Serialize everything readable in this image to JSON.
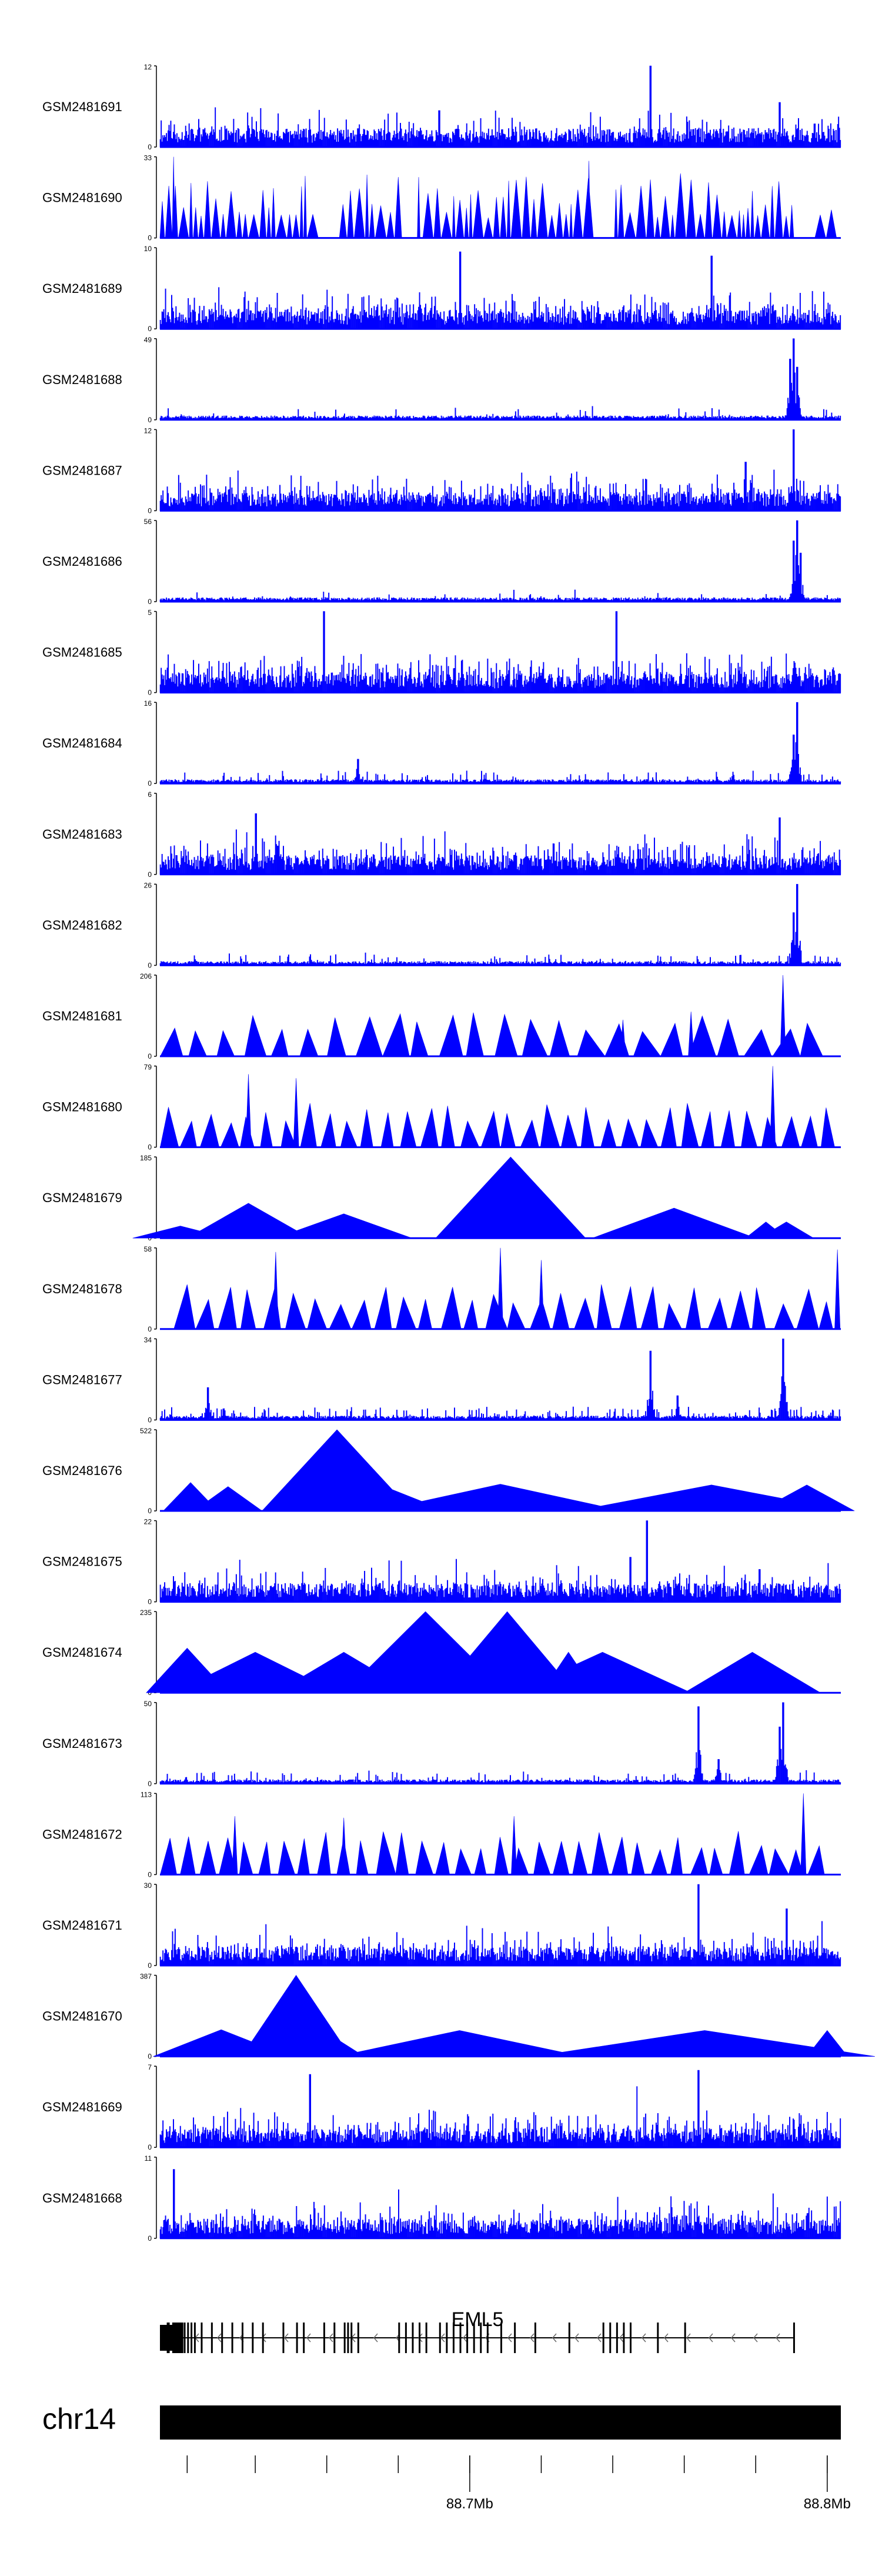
{
  "chart_data": {
    "type": "area",
    "title": "",
    "color": "#0000ff",
    "gene_color": "#000000",
    "tracks": [
      {
        "name": "GSM2481691",
        "ymax": "12",
        "ymin": "0",
        "style": "dense",
        "seed": 11,
        "density": 0.22,
        "peaks": [
          [
            0.72,
            1.0
          ],
          [
            0.91,
            0.55
          ],
          [
            0.41,
            0.45
          ]
        ]
      },
      {
        "name": "GSM2481690",
        "ymax": "33",
        "ymin": "0",
        "style": "spiky",
        "seed": 23,
        "count": 105,
        "peaks": [
          [
            0.02,
            1.0
          ],
          [
            0.38,
            0.75
          ],
          [
            0.63,
            0.95
          ]
        ]
      },
      {
        "name": "GSM2481689",
        "ymax": "10",
        "ymin": "0",
        "style": "dense",
        "seed": 31,
        "density": 0.45,
        "peaks": [
          [
            0.44,
            0.95
          ],
          [
            0.81,
            0.9
          ]
        ]
      },
      {
        "name": "GSM2481688",
        "ymax": "49",
        "ymin": "0",
        "style": "sparse",
        "seed": 41,
        "density": 0.05,
        "peaks": [
          [
            0.93,
            1.0
          ],
          [
            0.925,
            0.75
          ],
          [
            0.935,
            0.65
          ]
        ]
      },
      {
        "name": "GSM2481687",
        "ymax": "12",
        "ymin": "0",
        "style": "dense",
        "seed": 53,
        "density": 0.42,
        "peaks": [
          [
            0.93,
            1.0
          ],
          [
            0.86,
            0.6
          ]
        ]
      },
      {
        "name": "GSM2481686",
        "ymax": "56",
        "ymin": "0",
        "style": "sparse",
        "seed": 61,
        "density": 0.05,
        "peaks": [
          [
            0.935,
            1.0
          ],
          [
            0.93,
            0.75
          ],
          [
            0.94,
            0.6
          ]
        ]
      },
      {
        "name": "GSM2481685",
        "ymax": "5",
        "ymin": "0",
        "style": "dense",
        "seed": 71,
        "density": 0.5,
        "peaks": [
          [
            0.24,
            1.0
          ],
          [
            0.67,
            1.0
          ]
        ]
      },
      {
        "name": "GSM2481684",
        "ymax": "16",
        "ymin": "0",
        "style": "sparse",
        "seed": 83,
        "density": 0.1,
        "peaks": [
          [
            0.935,
            1.0
          ],
          [
            0.93,
            0.6
          ],
          [
            0.29,
            0.3
          ]
        ]
      },
      {
        "name": "GSM2481683",
        "ymax": "6",
        "ymin": "0",
        "style": "dense",
        "seed": 97,
        "density": 0.38,
        "peaks": [
          [
            0.14,
            0.75
          ],
          [
            0.91,
            0.7
          ]
        ]
      },
      {
        "name": "GSM2481682",
        "ymax": "26",
        "ymin": "0",
        "style": "sparse",
        "seed": 101,
        "density": 0.06,
        "peaks": [
          [
            0.935,
            1.0
          ],
          [
            0.93,
            0.65
          ],
          [
            0.05,
            0.12
          ]
        ]
      },
      {
        "name": "GSM2481681",
        "ymax": "206",
        "ymin": "0",
        "style": "triangles",
        "seed": 113,
        "count": 24,
        "start": 0.0,
        "end": 0.98,
        "peaks": [
          [
            0.915,
            1.0
          ],
          [
            0.78,
            0.55
          ],
          [
            0.68,
            0.45
          ]
        ]
      },
      {
        "name": "GSM2481680",
        "ymax": "79",
        "ymin": "0",
        "style": "triangles",
        "seed": 127,
        "count": 34,
        "start": 0.0,
        "end": 1.0,
        "peaks": [
          [
            0.9,
            1.0
          ],
          [
            0.13,
            0.9
          ],
          [
            0.2,
            0.85
          ]
        ]
      },
      {
        "name": "GSM2481679",
        "ymax": "185",
        "ymin": "0",
        "style": "triangles_custom",
        "peaks": [
          [
            0.03,
            0.15,
            0.07
          ],
          [
            0.1,
            0.2,
            0.05
          ],
          [
            0.13,
            0.43,
            0.09
          ],
          [
            0.24,
            0.15,
            0.05
          ],
          [
            0.27,
            0.3,
            0.1
          ],
          [
            0.515,
            1.0,
            0.11
          ],
          [
            0.755,
            0.37,
            0.12
          ],
          [
            0.89,
            0.2,
            0.03
          ],
          [
            0.92,
            0.2,
            0.04
          ]
        ]
      },
      {
        "name": "GSM2481678",
        "ymax": "58",
        "ymin": "0",
        "style": "triangles",
        "seed": 139,
        "count": 30,
        "start": 0.02,
        "end": 1.0,
        "peaks": [
          [
            0.5,
            1.0
          ],
          [
            0.17,
            0.95
          ],
          [
            0.995,
            0.98
          ],
          [
            0.56,
            0.85
          ]
        ]
      },
      {
        "name": "GSM2481677",
        "ymax": "34",
        "ymin": "0",
        "style": "sparse",
        "seed": 149,
        "density": 0.18,
        "peaks": [
          [
            0.915,
            1.0
          ],
          [
            0.72,
            0.85
          ],
          [
            0.07,
            0.4
          ],
          [
            0.76,
            0.3
          ]
        ]
      },
      {
        "name": "GSM2481676",
        "ymax": "522",
        "ymin": "0",
        "style": "triangles_custom",
        "peaks": [
          [
            0.045,
            0.35,
            0.04
          ],
          [
            0.1,
            0.3,
            0.05
          ],
          [
            0.26,
            1.0,
            0.11
          ],
          [
            0.28,
            0.35,
            0.03
          ],
          [
            0.33,
            0.3,
            0.09
          ],
          [
            0.5,
            0.33,
            0.18
          ],
          [
            0.81,
            0.32,
            0.2
          ],
          [
            0.95,
            0.32,
            0.07
          ]
        ]
      },
      {
        "name": "GSM2481675",
        "ymax": "22",
        "ymin": "0",
        "style": "dense",
        "seed": 163,
        "density": 0.25,
        "peaks": [
          [
            0.715,
            1.0
          ],
          [
            0.69,
            0.55
          ],
          [
            0.88,
            0.4
          ]
        ]
      },
      {
        "name": "GSM2481674",
        "ymax": "235",
        "ymin": "0",
        "style": "triangles_custom",
        "peaks": [
          [
            0.04,
            0.55,
            0.06
          ],
          [
            0.14,
            0.5,
            0.12
          ],
          [
            0.27,
            0.5,
            0.1
          ],
          [
            0.39,
            1.0,
            0.12
          ],
          [
            0.51,
            1.0,
            0.1
          ],
          [
            0.54,
            0.5,
            0.05
          ],
          [
            0.6,
            0.5,
            0.04
          ],
          [
            0.65,
            0.5,
            0.13
          ],
          [
            0.87,
            0.5,
            0.1
          ]
        ]
      },
      {
        "name": "GSM2481673",
        "ymax": "50",
        "ymin": "0",
        "style": "sparse",
        "seed": 179,
        "density": 0.12,
        "peaks": [
          [
            0.915,
            1.0
          ],
          [
            0.79,
            0.95
          ],
          [
            0.91,
            0.7
          ],
          [
            0.82,
            0.3
          ]
        ]
      },
      {
        "name": "GSM2481672",
        "ymax": "113",
        "ymin": "0",
        "style": "triangles",
        "seed": 191,
        "count": 34,
        "start": 0.0,
        "end": 0.98,
        "peaks": [
          [
            0.945,
            1.0
          ],
          [
            0.11,
            0.72
          ],
          [
            0.27,
            0.7
          ],
          [
            0.52,
            0.72
          ]
        ]
      },
      {
        "name": "GSM2481671",
        "ymax": "30",
        "ymin": "0",
        "style": "dense",
        "seed": 199,
        "density": 0.28,
        "peaks": [
          [
            0.79,
            1.0
          ],
          [
            0.92,
            0.7
          ],
          [
            0.45,
            0.45
          ]
        ]
      },
      {
        "name": "GSM2481670",
        "ymax": "387",
        "ymin": "0",
        "style": "triangles_custom",
        "peaks": [
          [
            0.09,
            0.33,
            0.1
          ],
          [
            0.2,
            1.0,
            0.08
          ],
          [
            0.215,
            0.35,
            0.03
          ],
          [
            0.24,
            0.32,
            0.06
          ],
          [
            0.44,
            0.32,
            0.18
          ],
          [
            0.8,
            0.32,
            0.25
          ],
          [
            0.98,
            0.32,
            0.03
          ]
        ]
      },
      {
        "name": "GSM2481669",
        "ymax": "7",
        "ymin": "0",
        "style": "dense",
        "seed": 211,
        "density": 0.42,
        "peaks": [
          [
            0.79,
            0.95
          ],
          [
            0.22,
            0.9
          ],
          [
            0.7,
            0.75
          ]
        ]
      },
      {
        "name": "GSM2481668",
        "ymax": "11",
        "ymin": "0",
        "style": "dense",
        "seed": 223,
        "density": 0.35,
        "peaks": [
          [
            0.02,
            0.85
          ],
          [
            0.35,
            0.6
          ],
          [
            0.9,
            0.55
          ]
        ]
      }
    ],
    "gene": {
      "name": "EML5",
      "strand": "-",
      "exons": [
        0.0,
        0.01,
        0.018,
        0.022,
        0.026,
        0.03,
        0.035,
        0.04,
        0.045,
        0.05,
        0.06,
        0.075,
        0.09,
        0.105,
        0.12,
        0.135,
        0.15,
        0.18,
        0.2,
        0.21,
        0.24,
        0.255,
        0.27,
        0.275,
        0.28,
        0.29,
        0.35,
        0.36,
        0.37,
        0.38,
        0.39,
        0.41,
        0.42,
        0.43,
        0.44,
        0.45,
        0.46,
        0.47,
        0.48,
        0.5,
        0.52,
        0.55,
        0.6,
        0.65,
        0.66,
        0.67,
        0.68,
        0.69,
        0.73,
        0.77,
        0.93
      ]
    },
    "chromosome": "chr14",
    "axis": {
      "ticks": [
        0.04,
        0.14,
        0.245,
        0.35,
        0.455,
        0.56,
        0.665,
        0.77,
        0.875,
        0.98
      ],
      "labels": [
        {
          "pos": 0.455,
          "text": "88.7Mb"
        },
        {
          "pos": 0.98,
          "text": "88.8Mb"
        }
      ]
    }
  }
}
